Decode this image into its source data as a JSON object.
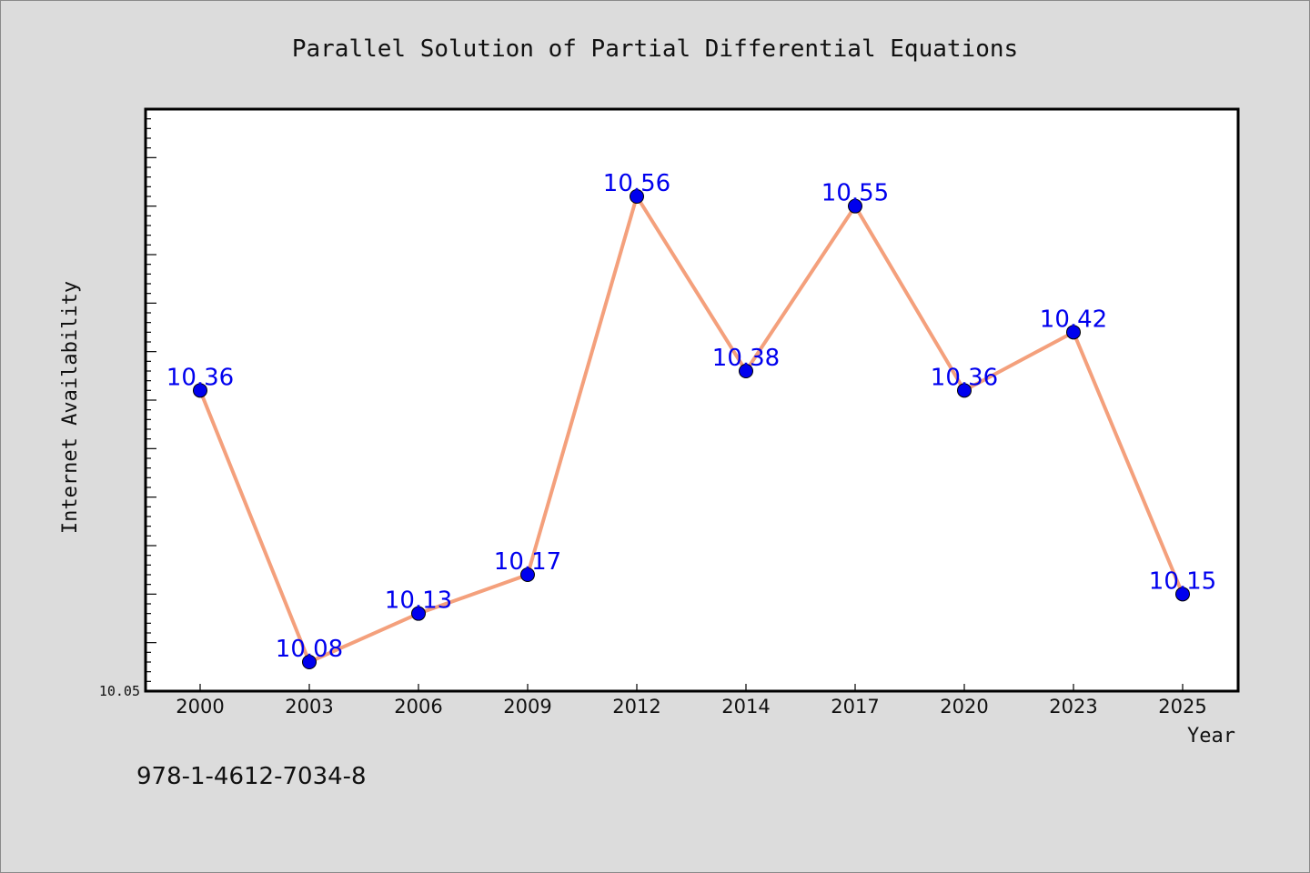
{
  "chart_data": {
    "type": "line",
    "title": "Parallel Solution of Partial Differential Equations",
    "xlabel": "Year",
    "ylabel": "Internet Availability",
    "categories": [
      "2000",
      "2003",
      "2006",
      "2009",
      "2012",
      "2014",
      "2017",
      "2020",
      "2023",
      "2025"
    ],
    "series": [
      {
        "values": [
          10.36,
          10.08,
          10.13,
          10.17,
          10.56,
          10.38,
          10.55,
          10.36,
          10.42,
          10.15
        ]
      }
    ],
    "data_labels": [
      "10.36",
      "10.08",
      "10.13",
      "10.17",
      "10.56",
      "10.38",
      "10.55",
      "10.36",
      "10.42",
      "10.15"
    ],
    "ylim": [
      10.05,
      10.65
    ],
    "y_tick_labels": [
      "10.05"
    ],
    "grid": false,
    "line_color": "#f4a07c",
    "marker_color": "#0000ee",
    "label_color": "#0000ee",
    "plot_background": "#ffffff",
    "page_background": "#dcdcdc"
  },
  "footer": {
    "isbn": "978-1-4612-7034-8"
  }
}
